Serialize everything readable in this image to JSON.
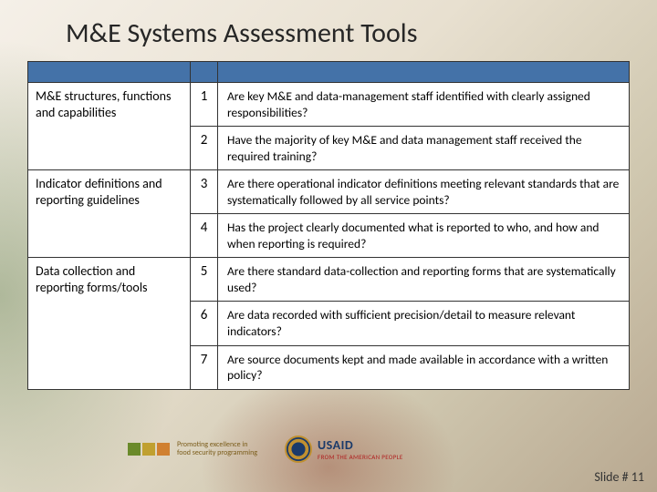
{
  "title": "M&E Systems Assessment Tools",
  "header_bar_color": "#4472a8",
  "categories": [
    {
      "label": "M&E structures, functions and capabilities",
      "rows": [
        {
          "n": "1",
          "q": "Are key M&E and data-management staff identified with clearly assigned responsibilities?"
        },
        {
          "n": "2",
          "q": "Have the majority of key M&E and data management staff received the required training?"
        }
      ]
    },
    {
      "label": "Indicator definitions and reporting guidelines",
      "rows": [
        {
          "n": "3",
          "q": "Are there operational indicator definitions meeting relevant standards that are systematically followed by all service points?"
        },
        {
          "n": "4",
          "q": "Has the project clearly documented what is reported to who, and how and when reporting is required?"
        }
      ]
    },
    {
      "label": "Data collection and reporting forms/tools",
      "rows": [
        {
          "n": "5",
          "q": "Are there standard data-collection and reporting forms that are systematically used?"
        },
        {
          "n": "6",
          "q": "Are data recorded with sufficient precision/detail to measure relevant indicators?"
        },
        {
          "n": "7",
          "q": "Are source documents kept and made available in accordance with a written policy?"
        }
      ]
    }
  ],
  "logos": {
    "tops": {
      "colors": [
        "#6a8a2a",
        "#c0a030",
        "#d08030"
      ],
      "tagline1": "Promoting excellence in",
      "tagline2": "food security programming"
    },
    "usaid": {
      "name": "USAID",
      "tagline": "FROM THE AMERICAN PEOPLE"
    }
  },
  "slide_number": "Slide # 11"
}
